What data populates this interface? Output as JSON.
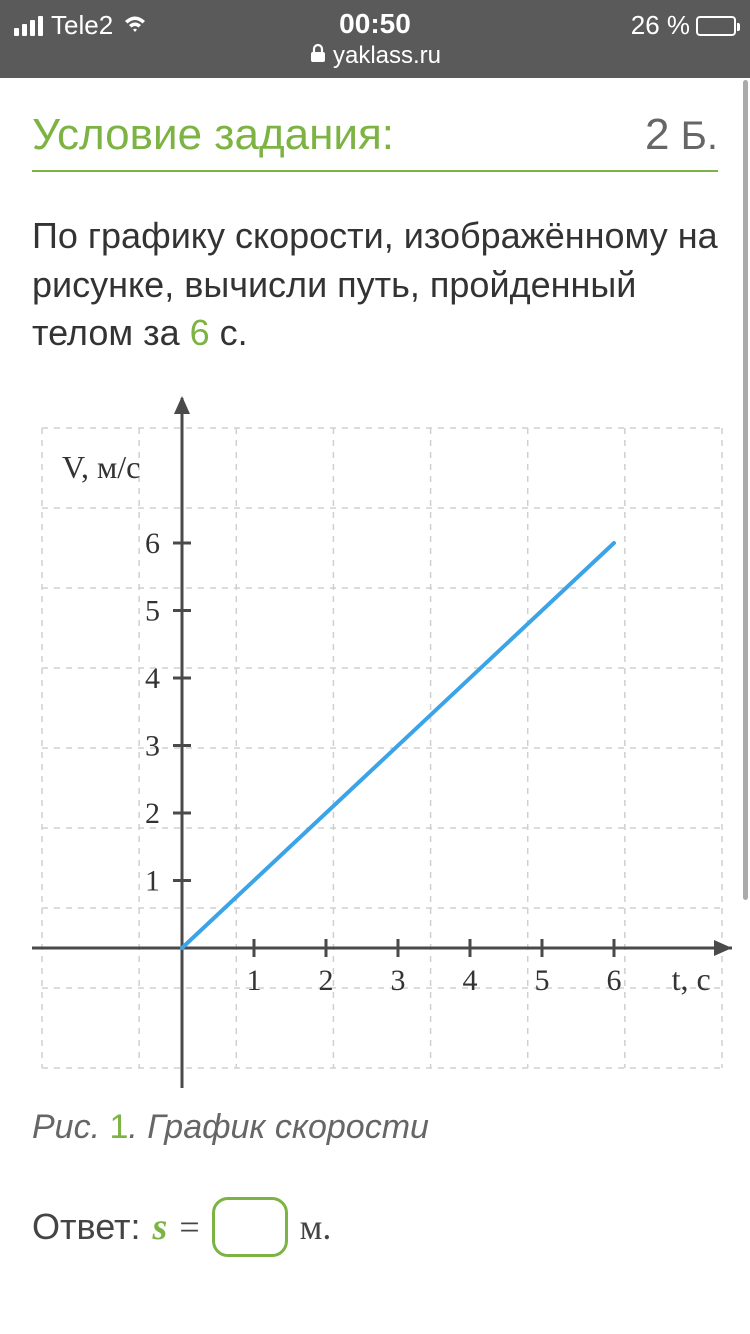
{
  "status": {
    "carrier": "Tele2",
    "time": "00:50",
    "url": "yaklass.ru",
    "battery_pct": "26 %",
    "battery_fill_pct": 26
  },
  "heading": "Условие задания:",
  "points_value": "2",
  "points_unit": "Б.",
  "problem": {
    "text_before": "По графику скорости, изображённому на рисунке, вычисли путь, пройденный телом за ",
    "accent_value": "6",
    "text_after": " с."
  },
  "chart": {
    "type": "line",
    "y_label": "V, м/с",
    "x_label": "t, с",
    "x_ticks": [
      1,
      2,
      3,
      4,
      5,
      6
    ],
    "y_ticks": [
      1,
      2,
      3,
      4,
      5,
      6
    ],
    "xlim": [
      0,
      7.5
    ],
    "ylim": [
      -1.5,
      8
    ],
    "line_points": [
      [
        0,
        0
      ],
      [
        6,
        6
      ]
    ],
    "line_color": "#3ba3e8",
    "line_width": 4,
    "axis_color": "#4a4a4a",
    "axis_width": 3,
    "grid_color": "#d0d0d0",
    "grid_dash": "6 6",
    "tick_label_color": "#333333",
    "tick_label_fontsize": 30,
    "axis_label_fontsize": 32,
    "background": "#ffffff"
  },
  "caption": {
    "prefix": "Рис. ",
    "num": "1",
    "text": ". График скорости"
  },
  "answer": {
    "label": "Ответ:",
    "var": "s",
    "eq": "=",
    "unit": "м."
  }
}
